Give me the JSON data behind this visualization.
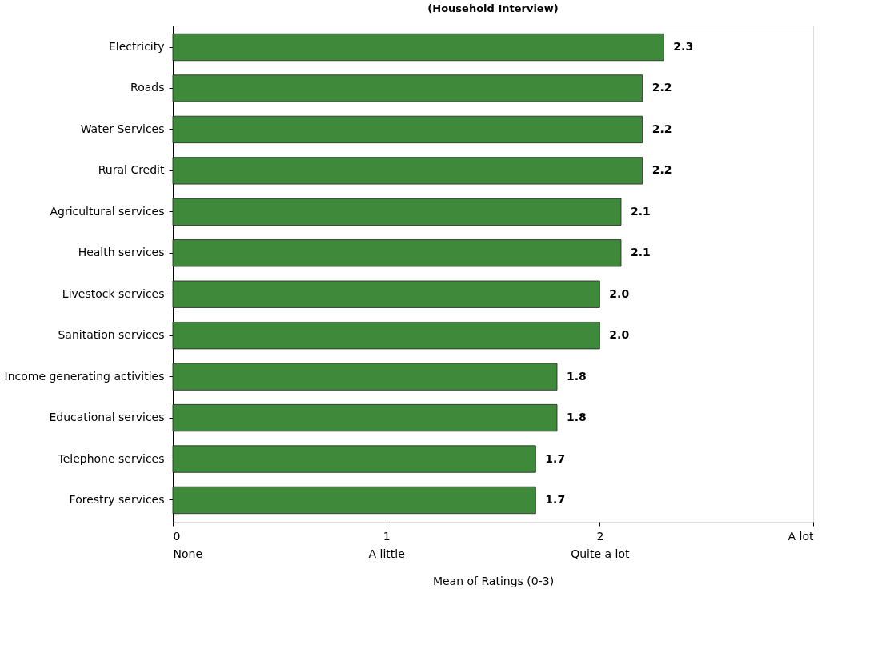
{
  "chart_data": {
    "type": "bar",
    "orientation": "horizontal",
    "title": "(Household Interview)",
    "xlabel": "Mean of Ratings (0-3)",
    "categories": [
      "Electricity",
      "Roads",
      "Water Services",
      "Rural Credit",
      "Agricultural services",
      "Health services",
      "Livestock services",
      "Sanitation services",
      "Income generating activities",
      "Educational services",
      "Telephone services",
      "Forestry services"
    ],
    "values": [
      2.3,
      2.2,
      2.2,
      2.2,
      2.1,
      2.1,
      2.0,
      2.0,
      1.8,
      1.8,
      1.7,
      1.7
    ],
    "value_labels": [
      "2.3",
      "2.2",
      "2.2",
      "2.2",
      "2.1",
      "2.1",
      "2.0",
      "2.0",
      "1.8",
      "1.8",
      "1.7",
      "1.7"
    ],
    "color": "#3f8a3a",
    "grid": false,
    "xlim": [
      0,
      3
    ],
    "xticks": [
      {
        "value": 0,
        "label": "0\nNone"
      },
      {
        "value": 1,
        "label": "1\nA little"
      },
      {
        "value": 2,
        "label": "2\nQuite a lot"
      },
      {
        "value": 3,
        "label": "A lot"
      }
    ]
  }
}
